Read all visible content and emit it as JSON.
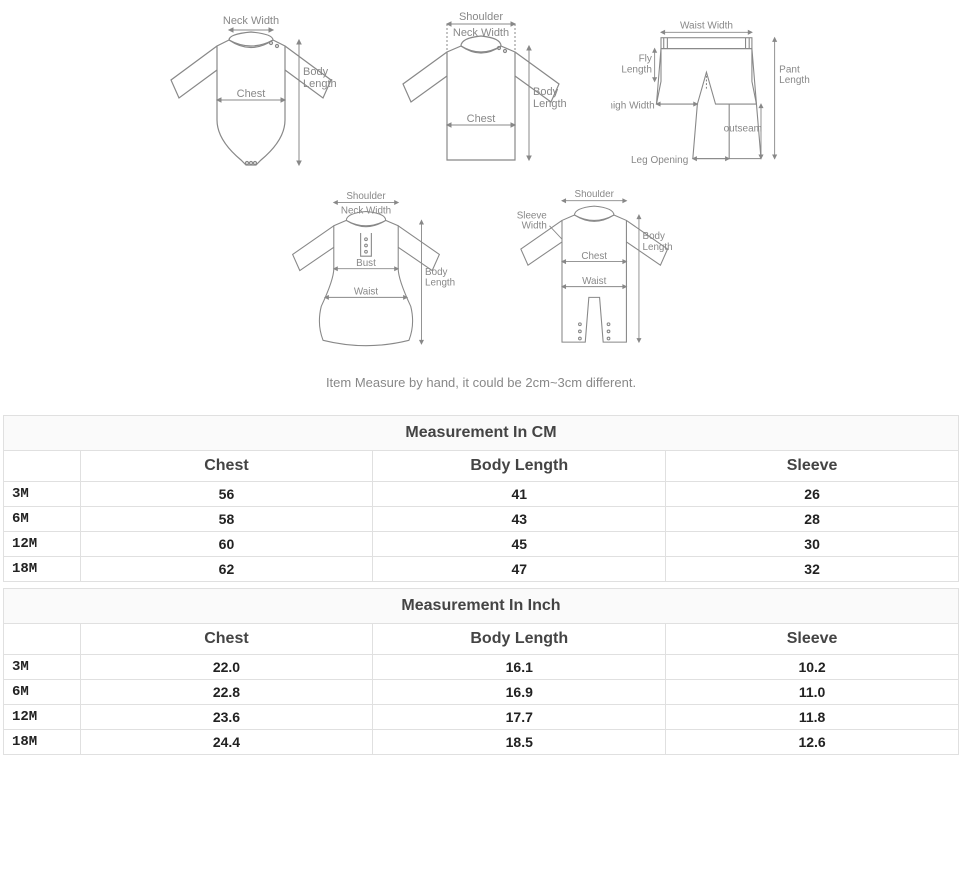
{
  "diagram_labels": {
    "neck_width": "Neck Width",
    "shoulder": "Shoulder",
    "chest": "Chest",
    "body_length": "Body Length",
    "bust": "Bust",
    "waist": "Waist",
    "waist_width": "Waist Width",
    "fly_length": "Fly Length",
    "thigh_width": "Thigh Width",
    "leg_opening": "Leg Opening",
    "outseam": "outseam",
    "pant_length": "Pant Length",
    "sleeve_width": "Sleeve Width"
  },
  "note": "Item Measure by hand, it could be 2cm~3cm different.",
  "colors": {
    "line": "#888888",
    "text": "#888888",
    "border": "#e0e0e0",
    "header_text": "#444444"
  },
  "tables": [
    {
      "title": "Measurement In CM",
      "columns": [
        "",
        "Chest",
        "Body Length",
        "Sleeve"
      ],
      "rows": [
        [
          "3M",
          "56",
          "41",
          "26"
        ],
        [
          "6M",
          "58",
          "43",
          "28"
        ],
        [
          "12M",
          "60",
          "45",
          "30"
        ],
        [
          "18M",
          "62",
          "47",
          "32"
        ]
      ]
    },
    {
      "title": "Measurement In Inch",
      "columns": [
        "",
        "Chest",
        "Body Length",
        "Sleeve"
      ],
      "rows": [
        [
          "3M",
          "22.0",
          "16.1",
          "10.2"
        ],
        [
          "6M",
          "22.8",
          "16.9",
          "11.0"
        ],
        [
          "12M",
          "23.6",
          "17.7",
          "11.8"
        ],
        [
          "18M",
          "24.4",
          "18.5",
          "12.6"
        ]
      ]
    }
  ]
}
